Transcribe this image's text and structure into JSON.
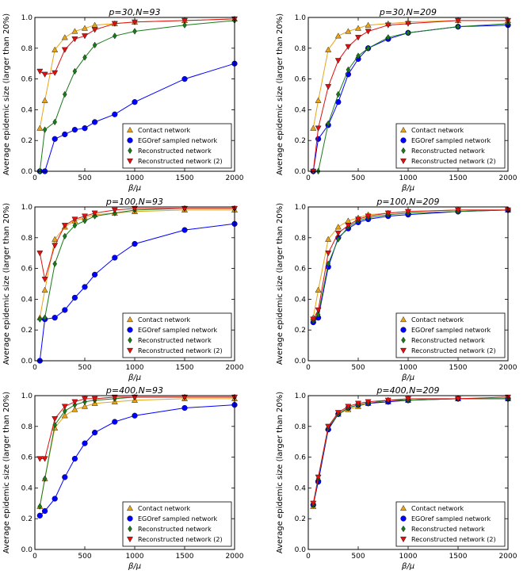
{
  "colors": {
    "contact": "#e8a317",
    "egoref": "#0000ff",
    "reconstructed": "#1a7a1a",
    "reconstructed2": "#dd1111"
  },
  "chart_data": [
    {
      "type": "line",
      "title": "p=30,N=93",
      "xlabel": "β/μ",
      "ylabel": "Average epidemic size (larger than 20%)",
      "xlim": [
        0,
        2000
      ],
      "ylim": [
        0,
        1.0
      ],
      "xticks": [
        "0",
        "500",
        "1000",
        "1500",
        "2000"
      ],
      "yticks": [
        "0.0",
        "0.2",
        "0.4",
        "0.6",
        "0.8",
        "1.0"
      ],
      "legend_position": "lower-right",
      "x": [
        50,
        100,
        200,
        300,
        400,
        500,
        600,
        800,
        1000,
        1500,
        2000
      ],
      "series": [
        {
          "name": "Contact network",
          "marker": "triangle-up",
          "color_key": "contact",
          "values": [
            0.28,
            0.46,
            0.79,
            0.87,
            0.91,
            0.93,
            0.95,
            0.96,
            0.97,
            0.98,
            0.99
          ]
        },
        {
          "name": "EGOref sampled network",
          "marker": "circle",
          "color_key": "egoref",
          "values": [
            0.0,
            0.0,
            0.21,
            0.24,
            0.27,
            0.28,
            0.32,
            0.37,
            0.45,
            0.6,
            0.7
          ]
        },
        {
          "name": "Reconstructed network",
          "marker": "diamond",
          "color_key": "reconstructed",
          "values": [
            0.0,
            0.27,
            0.32,
            0.5,
            0.65,
            0.74,
            0.82,
            0.88,
            0.91,
            0.95,
            0.98
          ]
        },
        {
          "name": "Reconstructed network (2)",
          "marker": "triangle-down",
          "color_key": "reconstructed2",
          "values": [
            0.65,
            0.63,
            0.64,
            0.79,
            0.86,
            0.88,
            0.92,
            0.96,
            0.97,
            0.98,
            0.99
          ]
        }
      ]
    },
    {
      "type": "line",
      "title": "p=30,N=209",
      "xlabel": "β/μ",
      "ylabel": "Average epidemic size (larger than 20%)",
      "xlim": [
        0,
        2000
      ],
      "ylim": [
        0,
        1.0
      ],
      "xticks": [
        "0",
        "500",
        "1000",
        "1500",
        "2000"
      ],
      "yticks": [
        "0.0",
        "0.2",
        "0.4",
        "0.6",
        "0.8",
        "1.0"
      ],
      "legend_position": "lower-right",
      "x": [
        50,
        100,
        200,
        300,
        400,
        500,
        600,
        800,
        1000,
        1500,
        2000
      ],
      "series": [
        {
          "name": "Contact network",
          "marker": "triangle-up",
          "color_key": "contact",
          "values": [
            0.28,
            0.46,
            0.79,
            0.88,
            0.91,
            0.93,
            0.95,
            0.96,
            0.97,
            0.98,
            0.98
          ]
        },
        {
          "name": "EGOref sampled network",
          "marker": "circle",
          "color_key": "egoref",
          "values": [
            0.0,
            0.21,
            0.3,
            0.45,
            0.63,
            0.73,
            0.8,
            0.86,
            0.9,
            0.94,
            0.95
          ]
        },
        {
          "name": "Reconstructed network",
          "marker": "diamond",
          "color_key": "reconstructed",
          "values": [
            0.0,
            0.0,
            0.31,
            0.5,
            0.66,
            0.75,
            0.8,
            0.87,
            0.9,
            0.94,
            0.96
          ]
        },
        {
          "name": "Reconstructed network (2)",
          "marker": "triangle-down",
          "color_key": "reconstructed2",
          "values": [
            0.0,
            0.28,
            0.55,
            0.72,
            0.81,
            0.87,
            0.91,
            0.95,
            0.96,
            0.98,
            0.98
          ]
        }
      ]
    },
    {
      "type": "line",
      "title": "p=100,N=93",
      "xlabel": "β/μ",
      "ylabel": "Average epidemic size (larger than 20%)",
      "xlim": [
        0,
        2000
      ],
      "ylim": [
        0,
        1.0
      ],
      "xticks": [
        "0",
        "500",
        "1000",
        "1500",
        "2000"
      ],
      "yticks": [
        "0.0",
        "0.2",
        "0.4",
        "0.6",
        "0.8",
        "1.0"
      ],
      "legend_position": "lower-right",
      "x": [
        50,
        100,
        200,
        300,
        400,
        500,
        600,
        800,
        1000,
        1500,
        2000
      ],
      "series": [
        {
          "name": "Contact network",
          "marker": "triangle-up",
          "color_key": "contact",
          "values": [
            0.28,
            0.46,
            0.79,
            0.87,
            0.91,
            0.93,
            0.95,
            0.96,
            0.97,
            0.98,
            0.98
          ]
        },
        {
          "name": "EGOref sampled network",
          "marker": "circle",
          "color_key": "egoref",
          "values": [
            0.0,
            0.27,
            0.28,
            0.33,
            0.41,
            0.48,
            0.56,
            0.67,
            0.76,
            0.85,
            0.89
          ]
        },
        {
          "name": "Reconstructed network",
          "marker": "diamond",
          "color_key": "reconstructed",
          "values": [
            0.27,
            0.28,
            0.63,
            0.81,
            0.88,
            0.91,
            0.94,
            0.96,
            0.98,
            0.99,
            0.99
          ]
        },
        {
          "name": "Reconstructed network (2)",
          "marker": "triangle-down",
          "color_key": "reconstructed2",
          "values": [
            0.7,
            0.53,
            0.75,
            0.88,
            0.92,
            0.94,
            0.96,
            0.98,
            0.99,
            0.99,
            0.99
          ]
        }
      ]
    },
    {
      "type": "line",
      "title": "p=100,N=209",
      "xlabel": "β/μ",
      "ylabel": "Average epidemic size (larger than 20%)",
      "xlim": [
        0,
        2000
      ],
      "ylim": [
        0,
        1.0
      ],
      "xticks": [
        "0",
        "500",
        "1000",
        "1500",
        "2000"
      ],
      "yticks": [
        "0.0",
        "0.2",
        "0.4",
        "0.6",
        "0.8",
        "1.0"
      ],
      "legend_position": "lower-right",
      "x": [
        50,
        100,
        200,
        300,
        400,
        500,
        600,
        800,
        1000,
        1500,
        2000
      ],
      "series": [
        {
          "name": "Contact network",
          "marker": "triangle-up",
          "color_key": "contact",
          "values": [
            0.28,
            0.46,
            0.79,
            0.87,
            0.91,
            0.93,
            0.95,
            0.96,
            0.97,
            0.98,
            0.98
          ]
        },
        {
          "name": "EGOref sampled network",
          "marker": "circle",
          "color_key": "egoref",
          "values": [
            0.25,
            0.28,
            0.61,
            0.8,
            0.86,
            0.9,
            0.92,
            0.94,
            0.95,
            0.97,
            0.98
          ]
        },
        {
          "name": "Reconstructed network",
          "marker": "diamond",
          "color_key": "reconstructed",
          "values": [
            0.26,
            0.3,
            0.63,
            0.79,
            0.87,
            0.91,
            0.93,
            0.95,
            0.96,
            0.97,
            0.98
          ]
        },
        {
          "name": "Reconstructed network (2)",
          "marker": "triangle-down",
          "color_key": "reconstructed2",
          "values": [
            0.27,
            0.33,
            0.7,
            0.83,
            0.88,
            0.92,
            0.94,
            0.96,
            0.97,
            0.98,
            0.98
          ]
        }
      ]
    },
    {
      "type": "line",
      "title": "p=400,N=93",
      "xlabel": "β/μ",
      "ylabel": "Average epidemic size (larger than 20%)",
      "xlim": [
        0,
        2000
      ],
      "ylim": [
        0,
        1.0
      ],
      "xticks": [
        "0",
        "500",
        "1000",
        "1500",
        "2000"
      ],
      "yticks": [
        "0.0",
        "0.2",
        "0.4",
        "0.6",
        "0.8",
        "1.0"
      ],
      "legend_position": "lower-right",
      "x": [
        50,
        100,
        200,
        300,
        400,
        500,
        600,
        800,
        1000,
        1500,
        2000
      ],
      "series": [
        {
          "name": "Contact network",
          "marker": "triangle-up",
          "color_key": "contact",
          "values": [
            0.28,
            0.46,
            0.79,
            0.87,
            0.91,
            0.93,
            0.95,
            0.96,
            0.97,
            0.98,
            0.98
          ]
        },
        {
          "name": "EGOref sampled network",
          "marker": "circle",
          "color_key": "egoref",
          "values": [
            0.22,
            0.25,
            0.33,
            0.47,
            0.59,
            0.69,
            0.76,
            0.83,
            0.87,
            0.92,
            0.94
          ]
        },
        {
          "name": "Reconstructed network",
          "marker": "diamond",
          "color_key": "reconstructed",
          "values": [
            0.28,
            0.46,
            0.81,
            0.9,
            0.94,
            0.96,
            0.97,
            0.98,
            0.99,
            0.99,
            0.99
          ]
        },
        {
          "name": "Reconstructed network (2)",
          "marker": "triangle-down",
          "color_key": "reconstructed2",
          "values": [
            0.59,
            0.59,
            0.85,
            0.93,
            0.96,
            0.98,
            0.98,
            0.99,
            0.99,
            0.99,
            0.99
          ]
        }
      ]
    },
    {
      "type": "line",
      "title": "p=400,N=209",
      "xlabel": "β/μ",
      "ylabel": "Average epidemic size (larger than 20%)",
      "xlim": [
        0,
        2000
      ],
      "ylim": [
        0,
        1.0
      ],
      "xticks": [
        "0",
        "500",
        "1000",
        "1500",
        "2000"
      ],
      "yticks": [
        "0.0",
        "0.2",
        "0.4",
        "0.6",
        "0.8",
        "1.0"
      ],
      "legend_position": "lower-right",
      "x": [
        50,
        100,
        200,
        300,
        400,
        500,
        600,
        800,
        1000,
        1500,
        2000
      ],
      "series": [
        {
          "name": "Contact network",
          "marker": "triangle-up",
          "color_key": "contact",
          "values": [
            0.28,
            0.46,
            0.79,
            0.88,
            0.91,
            0.93,
            0.95,
            0.96,
            0.97,
            0.98,
            0.98
          ]
        },
        {
          "name": "EGOref sampled network",
          "marker": "circle",
          "color_key": "egoref",
          "values": [
            0.29,
            0.44,
            0.78,
            0.88,
            0.92,
            0.94,
            0.95,
            0.96,
            0.97,
            0.98,
            0.98
          ]
        },
        {
          "name": "Reconstructed network",
          "marker": "diamond",
          "color_key": "reconstructed",
          "values": [
            0.29,
            0.46,
            0.79,
            0.88,
            0.92,
            0.94,
            0.95,
            0.97,
            0.97,
            0.98,
            0.98
          ]
        },
        {
          "name": "Reconstructed network (2)",
          "marker": "triangle-down",
          "color_key": "reconstructed2",
          "values": [
            0.3,
            0.47,
            0.8,
            0.89,
            0.93,
            0.95,
            0.96,
            0.97,
            0.98,
            0.98,
            0.99
          ]
        }
      ]
    }
  ]
}
